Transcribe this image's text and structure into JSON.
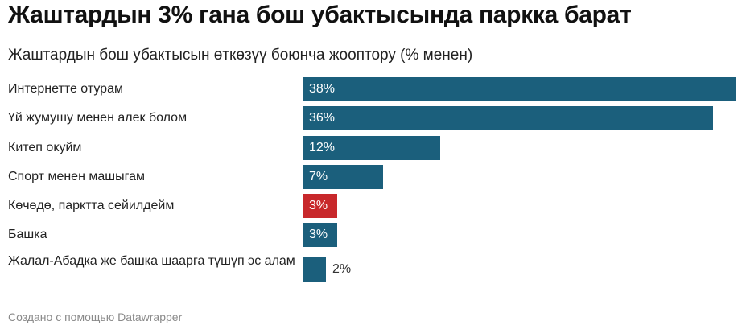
{
  "title": "Жаштардын 3% гана бош убактысында паркка барат",
  "subtitle": "Жаштардын бош убактысын өткөзүү боюнча жооптору (% менен)",
  "footer": "Создано с помощью Datawrapper",
  "colors": {
    "primary": "#1b5f7c",
    "highlight": "#c8282b"
  },
  "chart_data": {
    "type": "bar",
    "orientation": "horizontal",
    "categories": [
      "Интернетте отурам",
      "Үй жумушу менен алек болом",
      "Китеп окуйм",
      "Спорт менен машыгам",
      "Көчөдө, парктта сейилдейм",
      "Башка",
      "Жалал-Абадка же башка шаарга түшүп эс алам"
    ],
    "values": [
      38,
      36,
      12,
      7,
      3,
      3,
      2
    ],
    "value_labels": [
      "38%",
      "36%",
      "12%",
      "7%",
      "3%",
      "3%",
      "2%"
    ],
    "highlight_index": 4,
    "xlim": [
      0,
      38
    ],
    "grid": false,
    "legend": "none"
  }
}
